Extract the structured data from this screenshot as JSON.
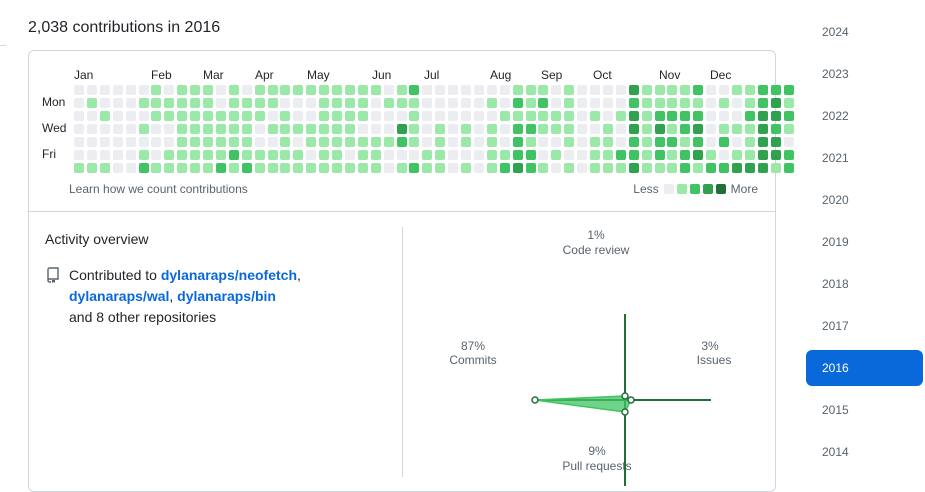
{
  "header": {
    "contributions_title": "2,038 contributions in 2016"
  },
  "calendar": {
    "months": [
      "Jan",
      "Feb",
      "Mar",
      "Apr",
      "May",
      "Jun",
      "Jul",
      "Aug",
      "Sep",
      "Oct",
      "Nov",
      "Dec"
    ],
    "day_labels": [
      "Mon",
      "Wed",
      "Fri"
    ],
    "learn_link": "Learn how we count contributions",
    "legend_less": "Less",
    "legend_more": "More",
    "level_colors": [
      "#ebedf0",
      "#9be9a8",
      "#40c463",
      "#30a14e",
      "#216e39"
    ],
    "week_levels": [
      "0000001",
      "0100001",
      "0010001",
      "0000000",
      "0000000",
      "0101012",
      "1110001",
      "0110011",
      "1111111",
      "1111111",
      "1111111",
      "0011112",
      "1111121",
      "0111112",
      "1110011",
      "1101011",
      "1011111",
      "1001011",
      "1001101",
      "1111111",
      "1111111",
      "1111101",
      "1110111",
      "1000111",
      "0100100",
      "1103201",
      "2111102",
      "0000011",
      "0001111",
      "0000000",
      "0001101",
      "0000000",
      "0101111",
      "0010012",
      "1212223",
      "1112122",
      "1211001",
      "0011010",
      "1111101",
      "0000000",
      "0010111",
      "0001111",
      "0010021",
      "3233223",
      "1111111",
      "1123221",
      "1121211",
      "1122122",
      "2123231",
      "0000012",
      "0101202",
      "1001013",
      "1121113",
      "2233333",
      "2332331",
      "2121022"
    ]
  },
  "overview": {
    "title": "Activity overview",
    "contributed_prefix": "Contributed to",
    "repos": [
      "dylanaraps/neofetch",
      "dylanaraps/wal",
      "dylanaraps/bin"
    ],
    "sep_comma": ",",
    "other_repos": "and 8 other repositories",
    "repo_icon": "repo-icon"
  },
  "activity": {
    "code_review": {
      "pct": "1%",
      "label": "Code review",
      "value": 1
    },
    "issues": {
      "pct": "3%",
      "label": "Issues",
      "value": 3
    },
    "pull_requests": {
      "pct": "9%",
      "label": "Pull requests",
      "value": 9
    },
    "commits": {
      "pct": "87%",
      "label": "Commits",
      "value": 87
    },
    "axis_color": "#216e39",
    "fill_color": "#40c463"
  },
  "years": {
    "list": [
      "2024",
      "2023",
      "2022",
      "2021",
      "2020",
      "2019",
      "2018",
      "2017",
      "2016",
      "2015",
      "2014"
    ],
    "selected": "2016",
    "selected_color": "#0969da"
  }
}
